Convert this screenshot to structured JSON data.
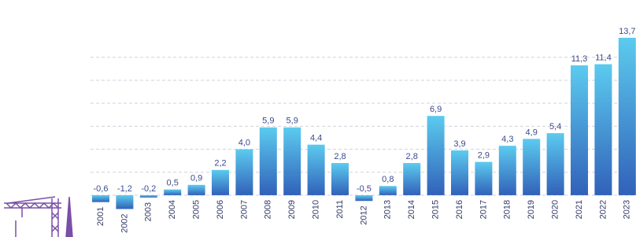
{
  "chart_data": {
    "type": "bar",
    "categories": [
      "2001",
      "2002",
      "2003",
      "2004",
      "2005",
      "2006",
      "2007",
      "2008",
      "2009",
      "2010",
      "2011",
      "2012",
      "2013",
      "2014",
      "2015",
      "2016",
      "2017",
      "2018",
      "2019",
      "2020",
      "2021",
      "2022",
      "2023"
    ],
    "values": [
      -0.6,
      -1.2,
      -0.2,
      0.5,
      0.9,
      2.2,
      4.0,
      5.9,
      5.9,
      4.4,
      2.8,
      -0.5,
      0.8,
      2.8,
      6.9,
      3.9,
      2.9,
      4.3,
      4.9,
      5.4,
      11.3,
      11.4,
      13.7
    ],
    "value_labels": [
      "-0,6",
      "-1,2",
      "-0,2",
      "0,5",
      "0,9",
      "2,2",
      "4,0",
      "5,9",
      "5,9",
      "4,4",
      "2,8",
      "-0,5",
      "0,8",
      "2,8",
      "6,9",
      "3,9",
      "2,9",
      "4,3",
      "4,9",
      "5,4",
      "11,3",
      "11,4",
      "13,7"
    ],
    "color": [
      "#5ccbef",
      "#3161b9"
    ],
    "ylim": [
      -3.5,
      15
    ],
    "yticks": [
      0,
      2,
      4,
      6,
      8,
      10,
      12
    ],
    "grid": true
  }
}
